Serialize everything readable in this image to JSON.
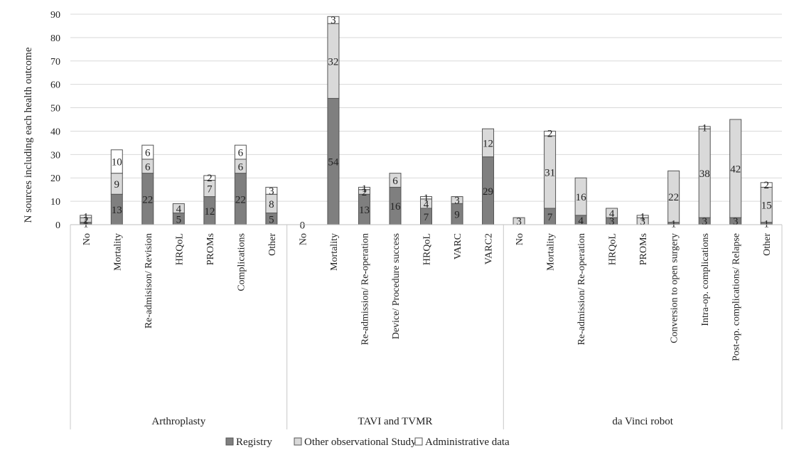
{
  "chart_data": {
    "type": "bar",
    "stacked": true,
    "ylabel": "N sources including each health outcome",
    "xlabel": "",
    "ylim": [
      0,
      90
    ],
    "yticks": [
      0,
      10,
      20,
      30,
      40,
      50,
      60,
      70,
      80,
      90
    ],
    "grid": true,
    "legend_position": "bottom",
    "colors": {
      "Registry": "#7f7f7f",
      "Other observational Study": "#d9d9d9",
      "Administrative data": "#ffffff"
    },
    "series_names": [
      "Registry",
      "Other observational Study",
      "Administrative data"
    ],
    "groups": [
      {
        "name": "Arthroplasty",
        "categories": [
          {
            "label": "No",
            "values": [
              1,
              2,
              1
            ],
            "labels": [
              "1",
              "2",
              "1"
            ]
          },
          {
            "label": "Mortality",
            "values": [
              13,
              9,
              10
            ],
            "labels": [
              "13",
              "9",
              "10"
            ]
          },
          {
            "label": "Re-admisison/ Revision",
            "values": [
              22,
              6,
              6
            ],
            "labels": [
              "22",
              "6",
              "6"
            ]
          },
          {
            "label": "HRQoL",
            "values": [
              5,
              4,
              0
            ],
            "labels": [
              "5",
              "4",
              ""
            ]
          },
          {
            "label": "PROMs",
            "values": [
              12,
              7,
              2
            ],
            "labels": [
              "12",
              "7",
              "2"
            ]
          },
          {
            "label": "Complications",
            "values": [
              22,
              6,
              6
            ],
            "labels": [
              "22",
              "6",
              "6"
            ]
          },
          {
            "label": "Other",
            "values": [
              5,
              8,
              3
            ],
            "labels": [
              "5",
              "8",
              "3"
            ]
          }
        ]
      },
      {
        "name": "TAVI and TVMR",
        "categories": [
          {
            "label": "No",
            "values": [
              0,
              0,
              0
            ],
            "labels": [
              "0",
              "",
              ""
            ]
          },
          {
            "label": "Mortality",
            "values": [
              54,
              32,
              3
            ],
            "labels": [
              "54",
              "32",
              "3"
            ]
          },
          {
            "label": "Re-admission/ Re-operation",
            "values": [
              13,
              2,
              1
            ],
            "labels": [
              "13",
              "2",
              "1"
            ]
          },
          {
            "label": "Device/ Procedure success",
            "values": [
              16,
              6,
              0
            ],
            "labels": [
              "16",
              "6",
              ""
            ]
          },
          {
            "label": "HRQoL",
            "values": [
              7,
              4,
              1
            ],
            "labels": [
              "7",
              "4",
              "1"
            ]
          },
          {
            "label": "VARC",
            "values": [
              9,
              3,
              0
            ],
            "labels": [
              "9",
              "3",
              ""
            ]
          },
          {
            "label": "VARC2",
            "values": [
              29,
              12,
              0
            ],
            "labels": [
              "29",
              "12",
              ""
            ]
          }
        ]
      },
      {
        "name": "da Vinci robot",
        "categories": [
          {
            "label": "No",
            "values": [
              0,
              3,
              0
            ],
            "labels": [
              "",
              "3",
              ""
            ]
          },
          {
            "label": "Mortality",
            "values": [
              7,
              31,
              2
            ],
            "labels": [
              "7",
              "31",
              "2"
            ]
          },
          {
            "label": "Re-admission/ Re-operation",
            "values": [
              4,
              16,
              0
            ],
            "labels": [
              "4",
              "16",
              ""
            ]
          },
          {
            "label": "HRQoL",
            "values": [
              3,
              4,
              0
            ],
            "labels": [
              "3",
              "4",
              ""
            ]
          },
          {
            "label": "PROMs",
            "values": [
              0,
              3,
              1
            ],
            "labels": [
              "",
              "3",
              "1"
            ]
          },
          {
            "label": "Conversion to open surgery",
            "values": [
              1,
              22,
              0
            ],
            "labels": [
              "1",
              "22",
              ""
            ]
          },
          {
            "label": "Intra-op. complications",
            "values": [
              3,
              38,
              1
            ],
            "labels": [
              "3",
              "38",
              "1"
            ]
          },
          {
            "label": "Post-op. complications/ Relapse",
            "values": [
              3,
              42,
              0
            ],
            "labels": [
              "3",
              "42",
              ""
            ]
          },
          {
            "label": "Other",
            "values": [
              1,
              15,
              2
            ],
            "labels": [
              "1",
              "15",
              "2"
            ]
          }
        ]
      }
    ]
  }
}
